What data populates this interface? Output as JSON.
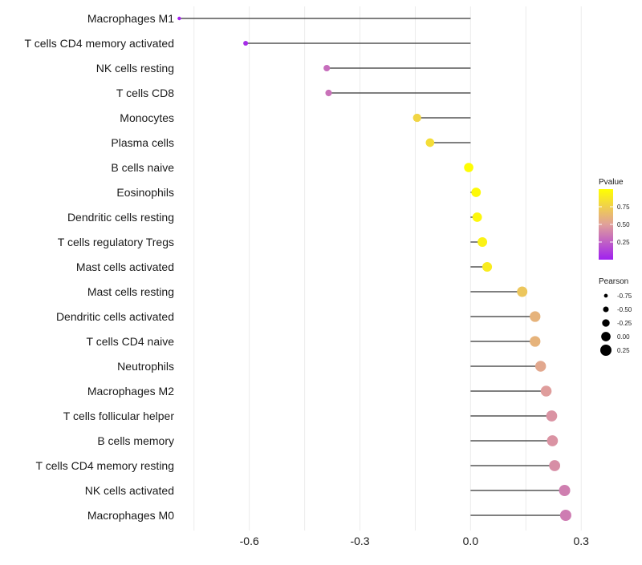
{
  "chart_data": {
    "type": "lollipop",
    "title": "",
    "xlabel": "",
    "ylabel": "",
    "xlim": [
      -0.78,
      0.33
    ],
    "x_ticks": [
      -0.6,
      -0.3,
      0.0,
      0.3
    ],
    "x_tick_labels": [
      "-0.6",
      "-0.3",
      "0.0",
      "0.3"
    ],
    "grid": true,
    "legend_position": "right",
    "categories": [
      "Macrophages M1",
      "T cells CD4 memory activated",
      "NK cells resting",
      "T cells CD8",
      "Monocytes",
      "Plasma cells",
      "B cells naive",
      "Eosinophils",
      "Dendritic cells resting",
      "T cells regulatory  Tregs",
      "Mast cells activated",
      "Mast cells resting",
      "Dendritic cells activated",
      "T cells CD4 naive",
      "Neutrophils",
      "Macrophages M2",
      "T cells follicular helper",
      "B cells memory",
      "T cells CD4 memory resting",
      "NK cells activated",
      "Macrophages M0"
    ],
    "values": [
      -0.79,
      -0.61,
      -0.39,
      -0.385,
      -0.145,
      -0.11,
      -0.005,
      0.015,
      0.018,
      0.032,
      0.045,
      0.14,
      0.175,
      0.175,
      0.19,
      0.205,
      0.22,
      0.222,
      0.228,
      0.255,
      0.258
    ],
    "pvalues": [
      0.02,
      0.05,
      0.3,
      0.32,
      0.78,
      0.82,
      0.99,
      0.97,
      0.96,
      0.93,
      0.9,
      0.7,
      0.6,
      0.6,
      0.54,
      0.49,
      0.45,
      0.45,
      0.43,
      0.37,
      0.36
    ],
    "legend_pvalue": {
      "title": "Pvalue",
      "breaks": [
        0.75,
        0.5,
        0.25
      ],
      "labels": [
        "0.75",
        "0.50",
        "0.25"
      ],
      "range": [
        0.0,
        1.0
      ],
      "color_low": "#A020F0",
      "color_mid": "#E0A09A",
      "color_high": "#FFFF00"
    },
    "legend_pearson": {
      "title": "Pearson",
      "breaks": [
        -0.75,
        -0.5,
        -0.25,
        0.0,
        0.25
      ],
      "labels": [
        "-0.75",
        "-0.50",
        "-0.25",
        "0.00",
        "0.25"
      ]
    },
    "colors": {
      "stem": "#333333",
      "grid": "#ebebeb"
    }
  }
}
